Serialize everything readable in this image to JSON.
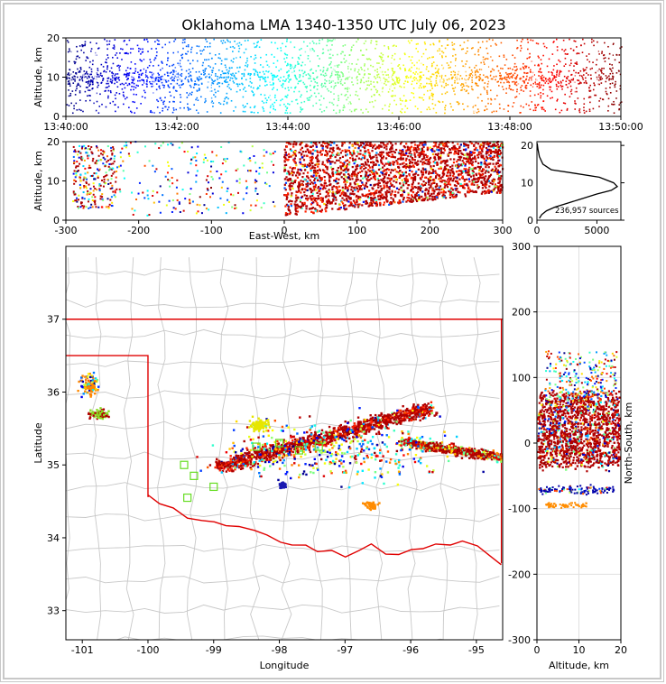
{
  "title": "Oklahoma LMA 1340-1350 UTC July 06, 2023",
  "colors": {
    "background": "#ffffff",
    "state_border": "#e00000",
    "county_line": "#c8c8c8",
    "storm_core": "#b00000",
    "station_marker": "#66dd22"
  },
  "chart_data": [
    {
      "panel": "time-altitude",
      "type": "scatter",
      "ylabel": "Altitude, km",
      "xlabel": "",
      "xlim": [
        "13:40:00",
        "13:50:00"
      ],
      "ylim": [
        0,
        20
      ],
      "x_ticks": [
        "13:40:00",
        "13:42:00",
        "13:44:00",
        "13:46:00",
        "13:48:00",
        "13:50:00"
      ],
      "y_ticks": [
        0,
        10,
        20
      ],
      "colormap": "jet (time)"
    },
    {
      "panel": "east-west-altitude",
      "type": "scatter",
      "xlabel": "East-West, km",
      "ylabel": "Altitude, km",
      "xlim": [
        -300,
        300
      ],
      "ylim": [
        0,
        20
      ],
      "x_ticks": [
        -300,
        -200,
        -100,
        0,
        100,
        200,
        300
      ],
      "y_ticks": [
        0,
        10,
        20
      ]
    },
    {
      "panel": "altitude-histogram",
      "type": "line",
      "xlim": [
        0,
        7000
      ],
      "ylim": [
        0,
        21
      ],
      "x_ticks": [
        0,
        5000
      ],
      "y_ticks": [
        0,
        10,
        20
      ],
      "annotation": "236,957 sources",
      "x": [
        200,
        400,
        800,
        1500,
        2500,
        3500,
        5000,
        6200,
        6700,
        6400,
        5200,
        3200,
        1200,
        500,
        200,
        80,
        20
      ],
      "y": [
        0.5,
        1.5,
        2.5,
        3.5,
        4.5,
        5.5,
        7.0,
        8.0,
        9.0,
        10.0,
        11.5,
        12.5,
        13.5,
        15.0,
        17.0,
        19.0,
        20.5
      ]
    },
    {
      "panel": "plan-view",
      "type": "scatter",
      "xlabel": "Longitude",
      "ylabel": "Latitude",
      "xlim": [
        -101.25,
        -94.6
      ],
      "ylim": [
        32.6,
        38.0
      ],
      "x_ticks": [
        -101,
        -100,
        -99,
        -98,
        -97,
        -96,
        -95
      ],
      "y_ticks": [
        33,
        34,
        35,
        36,
        37
      ],
      "stations": [
        [
          -99.45,
          35.0
        ],
        [
          -99.3,
          34.85
        ],
        [
          -99.4,
          34.55
        ],
        [
          -99.0,
          34.7
        ],
        [
          -98.35,
          35.25
        ],
        [
          -98.0,
          35.3
        ],
        [
          -97.7,
          35.2
        ],
        [
          -97.4,
          35.25
        ]
      ]
    },
    {
      "panel": "altitude-north-south",
      "type": "scatter",
      "xlabel": "Altitude, km",
      "ylabel": "North-South, km",
      "xlim": [
        0,
        20
      ],
      "ylim": [
        -300,
        300
      ],
      "x_ticks": [
        0,
        10,
        20
      ],
      "y_ticks": [
        -300,
        -200,
        -100,
        0,
        100,
        200,
        300
      ]
    }
  ]
}
